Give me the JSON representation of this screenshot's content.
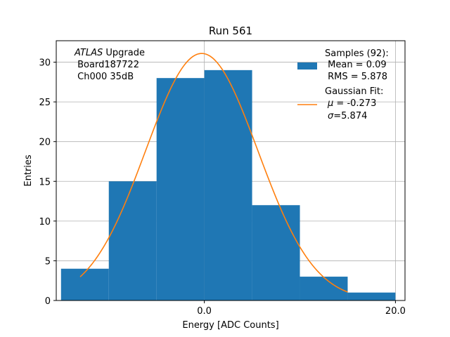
{
  "chart_data": {
    "type": "bar",
    "title": "Run 561",
    "xlabel": "Energy [ADC Counts]",
    "ylabel": "Entries",
    "xlim": [
      -15.5,
      21.0
    ],
    "ylim": [
      0,
      32.7
    ],
    "xticks": [
      0.0,
      20.0
    ],
    "xtick_labels": [
      "0.0",
      "20.0"
    ],
    "yticks": [
      0,
      5,
      10,
      15,
      20,
      25,
      30
    ],
    "ytick_labels": [
      "0",
      "5",
      "10",
      "15",
      "20",
      "25",
      "30"
    ],
    "grid": true,
    "histogram": {
      "name": "Samples (92):",
      "color": "#1f77b4",
      "bin_edges": [
        -15,
        -10,
        -5,
        0,
        5,
        10,
        15,
        20
      ],
      "counts": [
        4,
        15,
        28,
        29,
        12,
        3,
        1
      ]
    },
    "fit": {
      "name": "Gaussian Fit:",
      "color": "#ff7f0e",
      "mu": -0.273,
      "sigma": 5.874,
      "amplitude": 31.1,
      "x_range": [
        -13,
        15
      ]
    },
    "annotation": {
      "atlas": "ATLAS",
      "upgrade": " Upgrade",
      "board": " Board187722",
      "channel": " Ch000 35dB"
    },
    "legend": {
      "placement": "top-right",
      "samples_title": "Samples (92):",
      "samples_mean": " Mean = 0.09",
      "samples_rms": " RMS = 5.878",
      "fit_title": "Gaussian Fit:",
      "fit_mu_symbol": "μ",
      "fit_mu_value": " = -0.273",
      "fit_sigma_symbol": "σ",
      "fit_sigma_value": "=5.874"
    }
  }
}
